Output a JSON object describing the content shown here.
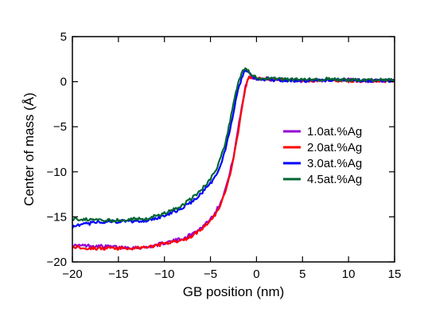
{
  "chart_data": {
    "type": "line",
    "title": "",
    "xlabel": "GB position (nm)",
    "ylabel": "Center of mass (Å)",
    "xlim": [
      -20,
      15
    ],
    "ylim": [
      -20,
      5
    ],
    "xticks": [
      -20,
      -15,
      -10,
      -5,
      0,
      5,
      10,
      15
    ],
    "yticks": [
      -20,
      -15,
      -10,
      -5,
      0,
      5
    ],
    "xtick_labels": [
      "−20",
      "−15",
      "−10",
      "−5",
      "0",
      "5",
      "10",
      "15"
    ],
    "ytick_labels": [
      "−20",
      "−15",
      "−10",
      "−5",
      "0",
      "5"
    ],
    "grid": false,
    "legend_position": "center-right",
    "series": [
      {
        "name": "1.0at.%Ag",
        "color": "#9400d3",
        "x": [
          -20,
          -18,
          -16,
          -14,
          -12,
          -10,
          -8,
          -7,
          -6,
          -5,
          -4.5,
          -4,
          -3.5,
          -3,
          -2.5,
          -2,
          -1.5,
          -1.2,
          -1,
          -0.8,
          -0.5,
          0,
          2,
          5,
          8,
          10,
          12,
          15
        ],
        "y": [
          -18.2,
          -18.2,
          -18.3,
          -18.4,
          -18.4,
          -17.9,
          -17.4,
          -16.9,
          -16.2,
          -15.2,
          -14.5,
          -13.6,
          -12.3,
          -10.6,
          -8.3,
          -5.3,
          -2.2,
          -0.6,
          0.2,
          0.6,
          0.5,
          0.4,
          0.3,
          0.1,
          0.2,
          0.2,
          0.1,
          0.1
        ]
      },
      {
        "name": "2.0at.%Ag",
        "color": "#ff0000",
        "x": [
          -20,
          -18,
          -16,
          -14,
          -12,
          -10,
          -8,
          -7,
          -6,
          -5,
          -4.5,
          -4,
          -3.5,
          -3,
          -2.5,
          -2,
          -1.5,
          -1.2,
          -1,
          -0.8,
          -0.5,
          0,
          2,
          5,
          8,
          10,
          12,
          15
        ],
        "y": [
          -18.3,
          -18.5,
          -18.5,
          -18.5,
          -18.4,
          -18.0,
          -17.6,
          -17.1,
          -16.4,
          -15.4,
          -14.8,
          -13.9,
          -12.6,
          -10.9,
          -8.6,
          -5.6,
          -2.5,
          -0.8,
          0.0,
          0.5,
          0.4,
          0.3,
          0.2,
          0.1,
          0.2,
          0.1,
          0.1,
          0.1
        ]
      },
      {
        "name": "3.0at.%Ag",
        "color": "#0000ff",
        "x": [
          -20,
          -18,
          -16,
          -14,
          -12,
          -10,
          -8,
          -7,
          -6,
          -5,
          -4.5,
          -4,
          -3.5,
          -3,
          -2.5,
          -2,
          -1.5,
          -1.2,
          -1,
          -0.5,
          0,
          2,
          5,
          8,
          10,
          12,
          15
        ],
        "y": [
          -16.1,
          -15.7,
          -15.5,
          -15.5,
          -15.4,
          -14.9,
          -14.0,
          -13.3,
          -12.4,
          -11.3,
          -10.6,
          -9.6,
          -8.0,
          -5.9,
          -3.4,
          -0.8,
          0.7,
          1.2,
          1.1,
          0.6,
          0.3,
          0.2,
          0.1,
          0.2,
          0.2,
          0.1,
          0.1
        ]
      },
      {
        "name": "4.5at.%Ag",
        "color": "#006633",
        "x": [
          -20,
          -18,
          -16,
          -14,
          -12,
          -10,
          -8,
          -7,
          -6,
          -5,
          -4.5,
          -4,
          -3.5,
          -3,
          -2.5,
          -2,
          -1.5,
          -1.2,
          -1,
          -0.5,
          0,
          2,
          5,
          8,
          10,
          12,
          15
        ],
        "y": [
          -15.2,
          -15.3,
          -15.4,
          -15.3,
          -15.2,
          -14.6,
          -13.7,
          -12.9,
          -12.0,
          -10.8,
          -10.0,
          -8.8,
          -7.2,
          -5.0,
          -2.5,
          -0.2,
          1.2,
          1.5,
          1.3,
          0.7,
          0.4,
          0.3,
          0.2,
          0.3,
          0.2,
          0.2,
          0.2
        ]
      }
    ]
  }
}
